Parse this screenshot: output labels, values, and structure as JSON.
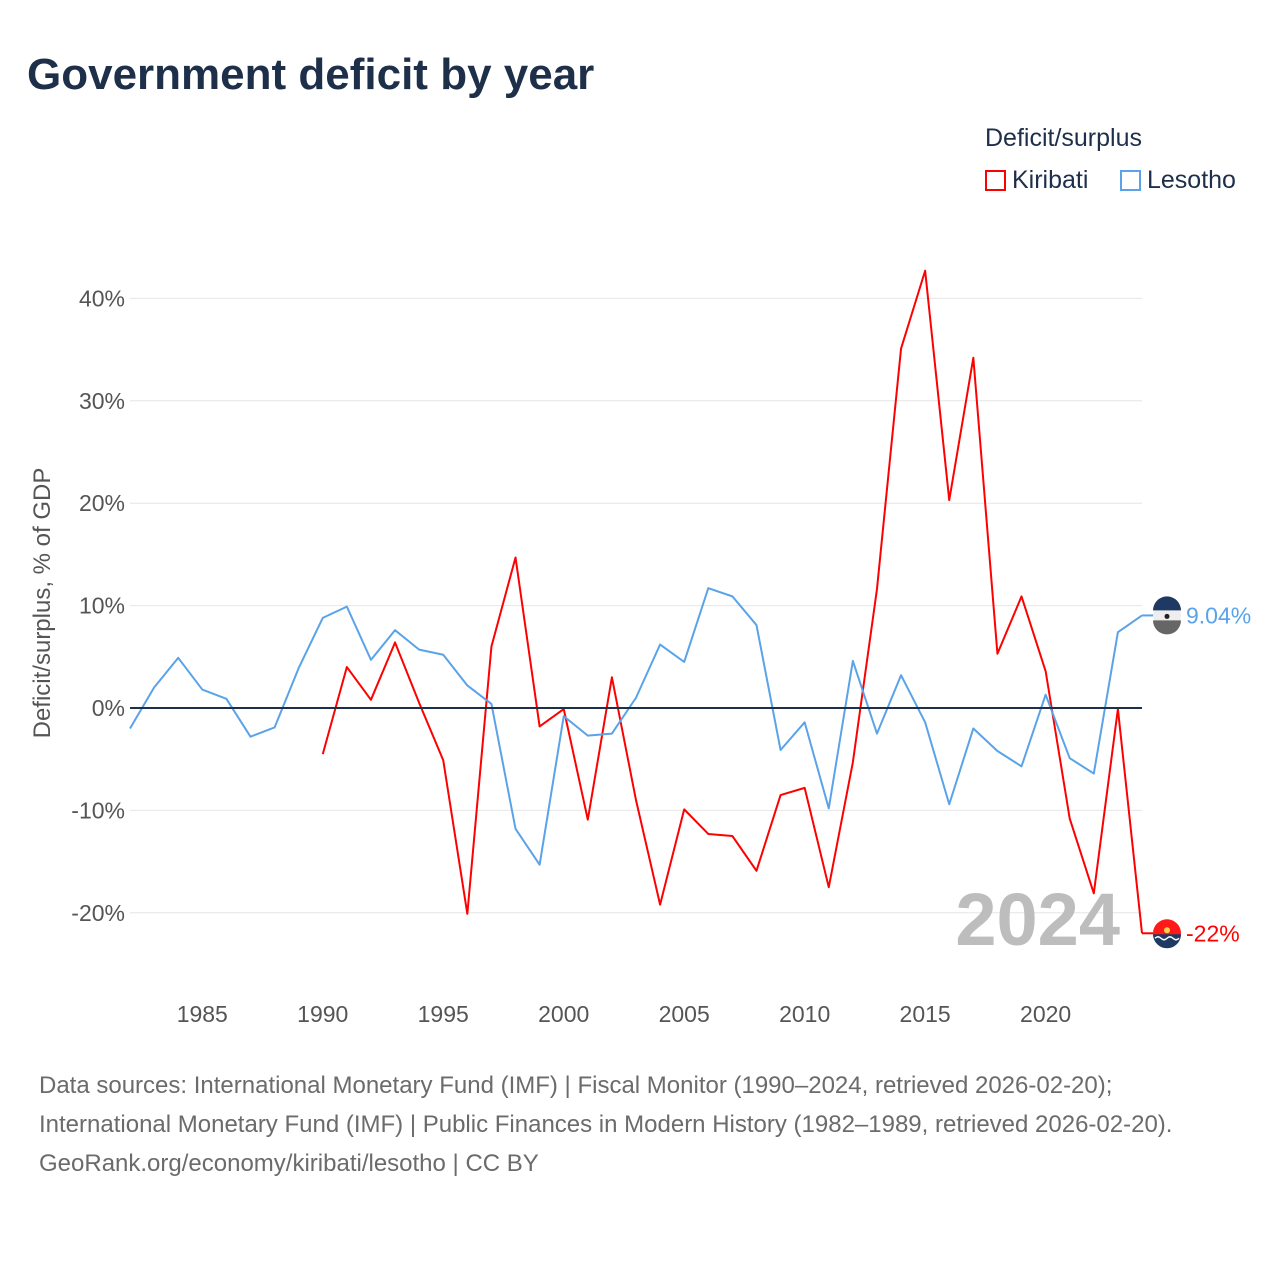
{
  "title": "Government deficit by year",
  "legend": {
    "title": "Deficit/surplus",
    "items": [
      {
        "name": "Kiribati",
        "color": "#ff0000"
      },
      {
        "name": "Lesotho",
        "color": "#5aa3e8"
      }
    ]
  },
  "chart_data": {
    "type": "line",
    "title": "Government deficit by year",
    "ylabel": "Deficit/surplus, % of GDP",
    "xlabel": "",
    "xlim": [
      1982,
      2024
    ],
    "ylim": [
      -26,
      45
    ],
    "yticks": [
      -20,
      -10,
      0,
      10,
      20,
      30,
      40
    ],
    "ytick_labels": [
      "-20%",
      "-10%",
      "0%",
      "10%",
      "20%",
      "30%",
      "40%"
    ],
    "xticks": [
      1985,
      1990,
      1995,
      2000,
      2005,
      2010,
      2015,
      2020
    ],
    "xtick_labels": [
      "1985",
      "1990",
      "1995",
      "2000",
      "2005",
      "2010",
      "2015",
      "2020"
    ],
    "grid": true,
    "legend_position": "top-right",
    "year_watermark": "2024",
    "series": [
      {
        "name": "Kiribati",
        "color": "#ff0000",
        "end_label": "-22%",
        "x": [
          1990,
          1991,
          1992,
          1993,
          1994,
          1995,
          1996,
          1997,
          1998,
          1999,
          2000,
          2001,
          2002,
          2003,
          2004,
          2005,
          2006,
          2007,
          2008,
          2009,
          2010,
          2011,
          2012,
          2013,
          2014,
          2015,
          2016,
          2017,
          2018,
          2019,
          2020,
          2021,
          2022,
          2023,
          2024
        ],
        "values": [
          -4.5,
          4.0,
          0.8,
          6.4,
          0.5,
          -5.1,
          -20.1,
          6.0,
          14.7,
          -1.8,
          -0.1,
          -10.9,
          3.0,
          -9.0,
          -19.2,
          -9.9,
          -12.3,
          -12.5,
          -15.9,
          -8.5,
          -7.8,
          -17.5,
          -5.3,
          11.6,
          35.1,
          42.7,
          20.3,
          34.2,
          5.3,
          10.9,
          3.6,
          -10.8,
          -18.1,
          -0.1,
          -22.0
        ]
      },
      {
        "name": "Lesotho",
        "color": "#5aa3e8",
        "end_label": "9.04%",
        "x": [
          1982,
          1983,
          1984,
          1985,
          1986,
          1987,
          1988,
          1989,
          1990,
          1991,
          1992,
          1993,
          1994,
          1995,
          1996,
          1997,
          1998,
          1999,
          2000,
          2001,
          2002,
          2003,
          2004,
          2005,
          2006,
          2007,
          2008,
          2009,
          2010,
          2011,
          2012,
          2013,
          2014,
          2015,
          2016,
          2017,
          2018,
          2019,
          2020,
          2021,
          2022,
          2023,
          2024
        ],
        "values": [
          -2.0,
          2.0,
          4.9,
          1.8,
          0.9,
          -2.8,
          -1.9,
          3.9,
          8.8,
          9.9,
          4.7,
          7.6,
          5.7,
          5.2,
          2.2,
          0.4,
          -11.8,
          -15.3,
          -0.8,
          -2.7,
          -2.5,
          1.0,
          6.2,
          4.5,
          11.7,
          10.9,
          8.1,
          -4.1,
          -1.4,
          -9.8,
          4.6,
          -2.5,
          3.2,
          -1.4,
          -9.4,
          -2.0,
          -4.2,
          -5.7,
          1.3,
          -4.9,
          -6.4,
          7.4,
          9.04
        ]
      }
    ]
  },
  "footer": {
    "sources": "Data sources: International Monetary Fund (IMF) | Fiscal Monitor (1990–2024, retrieved 2026-02-20); International Monetary Fund (IMF) | Public Finances in Modern History (1982–1989, retrieved 2026-02-20).",
    "credit": "GeoRank.org/economy/kiribati/lesotho | CC BY"
  }
}
